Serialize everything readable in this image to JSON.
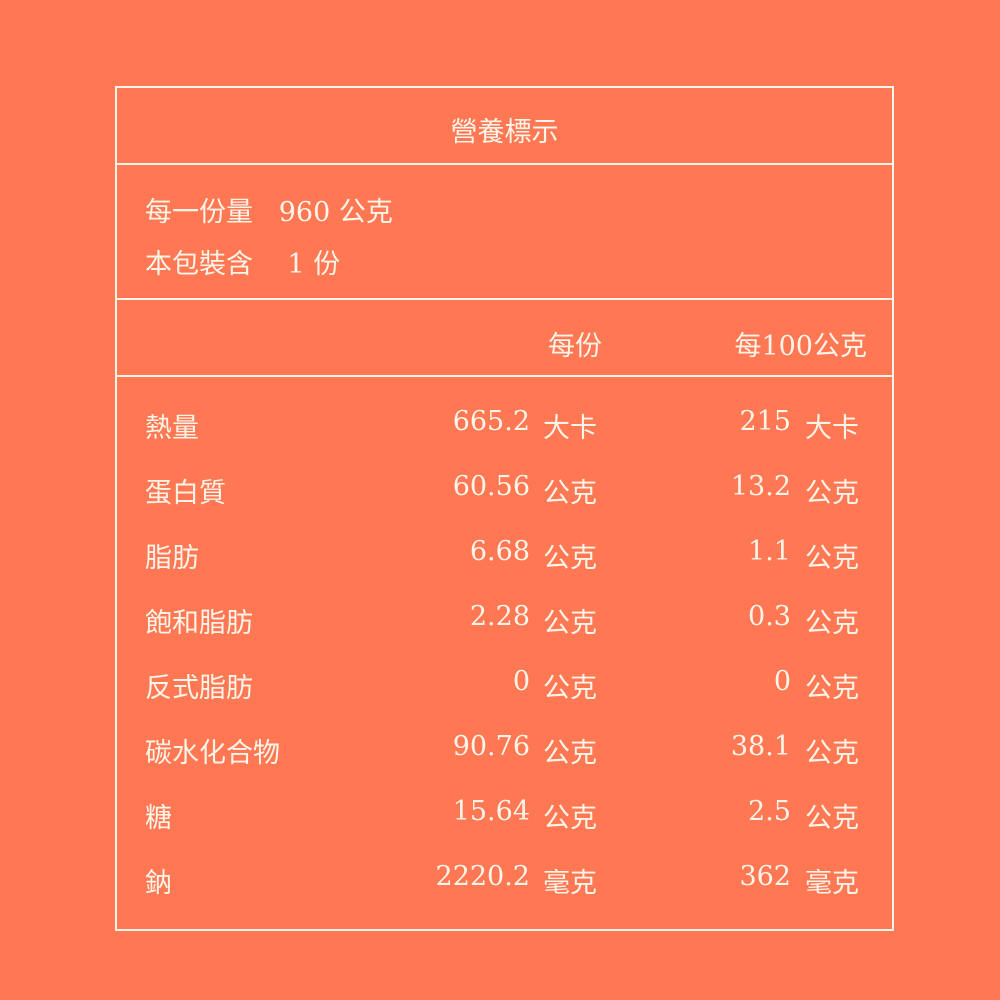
{
  "colors": {
    "background": "#FF7753",
    "text": "#FFF4E8"
  },
  "title": "營養標示",
  "serving": {
    "size_label": "每一份量",
    "size_value": "960 公克",
    "count_label": "本包裝含",
    "count_value": "1 份"
  },
  "headers": {
    "per_serving": "每份",
    "per_100g": "每100公克"
  },
  "rows": [
    {
      "name": "熱量",
      "v1": "665.2",
      "u1": "大卡",
      "v2": "215",
      "u2": "大卡"
    },
    {
      "name": "蛋白質",
      "v1": "60.56",
      "u1": "公克",
      "v2": "13.2",
      "u2": "公克"
    },
    {
      "name": "脂肪",
      "v1": "6.68",
      "u1": "公克",
      "v2": "1.1",
      "u2": "公克"
    },
    {
      "name": "飽和脂肪",
      "v1": "2.28",
      "u1": "公克",
      "v2": "0.3",
      "u2": "公克"
    },
    {
      "name": "反式脂肪",
      "v1": "0",
      "u1": "公克",
      "v2": "0",
      "u2": "公克"
    },
    {
      "name": "碳水化合物",
      "v1": "90.76",
      "u1": "公克",
      "v2": "38.1",
      "u2": "公克"
    },
    {
      "name": "糖",
      "v1": "15.64",
      "u1": "公克",
      "v2": "2.5",
      "u2": "公克"
    },
    {
      "name": "鈉",
      "v1": "2220.2",
      "u1": "毫克",
      "v2": "362",
      "u2": "毫克"
    }
  ]
}
